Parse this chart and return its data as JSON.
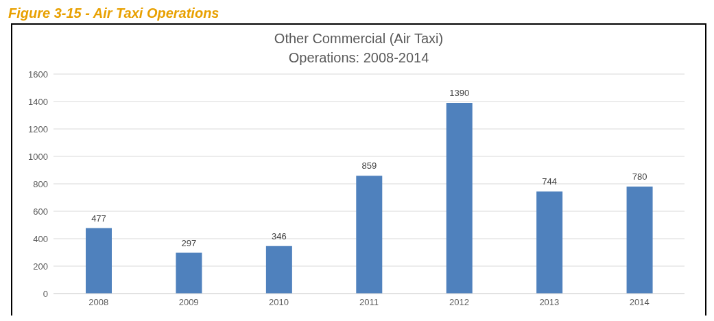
{
  "chart_data": {
    "type": "bar",
    "title": "Other Commercial (Air Taxi) Operations: 2008-2014",
    "annotations": [
      "Figure 3-15 - Air Taxi Operations"
    ],
    "categories": [
      "2008",
      "2009",
      "2010",
      "2011",
      "2012",
      "2013",
      "2014"
    ],
    "values": [
      477,
      297,
      346,
      859,
      1390,
      744,
      780
    ],
    "color": "#4f81bd",
    "ylim": [
      0,
      1600
    ],
    "yticks": [
      0,
      200,
      400,
      600,
      800,
      1000,
      1200,
      1400,
      1600
    ],
    "grid": "y",
    "data_labels": true
  }
}
